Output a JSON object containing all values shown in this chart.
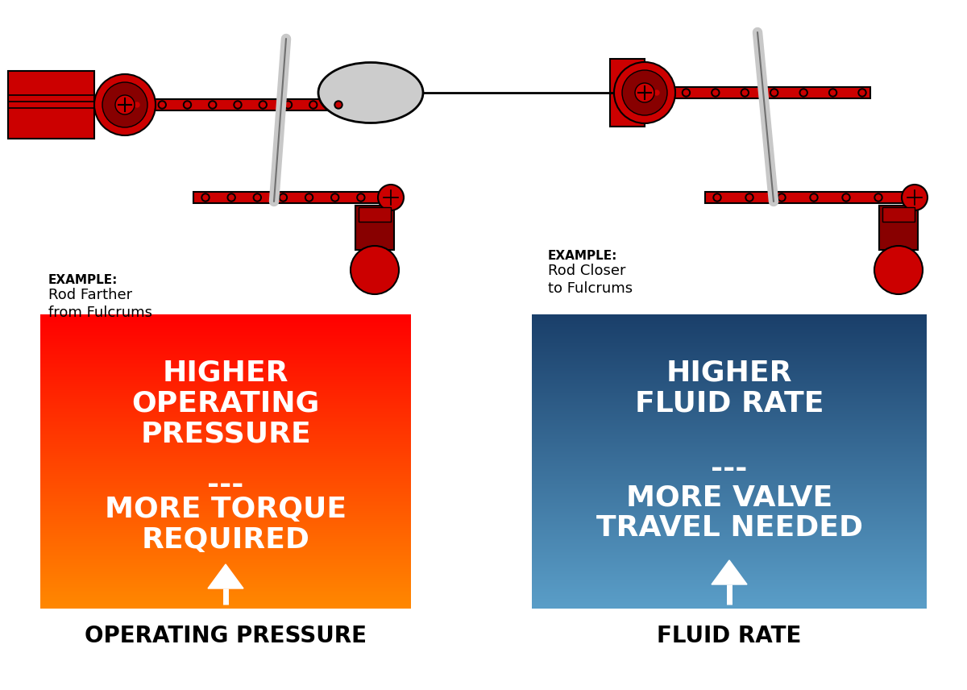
{
  "background_color": "#ffffff",
  "left_box": {
    "text1": "HIGHER\nOPERATING\nPRESSURE",
    "separator": "---",
    "text2": "MORE TORQUE\nREQUIRED",
    "bottom_label": "OPERATING PRESSURE",
    "example_bold": "EXAMPLE:",
    "example_normal": "Rod Farther\nfrom Fulcrums",
    "grad_top": "#ff0000",
    "grad_bottom": "#ff8800"
  },
  "right_box": {
    "text1": "HIGHER\nFLUID RATE",
    "separator": "---",
    "text2": "MORE VALVE\nTRAVEL NEEDED",
    "bottom_label": "FLUID RATE",
    "example_bold": "EXAMPLE:",
    "example_normal": "Rod Closer\nto Fulcrums",
    "grad_top": "#1a3f6a",
    "grad_bottom": "#5a9ec8"
  },
  "red": "#cc0000",
  "dark_red": "#880000",
  "gray": "#c8c8c8",
  "dark_gray": "#707070",
  "black": "#000000",
  "white": "#ffffff"
}
